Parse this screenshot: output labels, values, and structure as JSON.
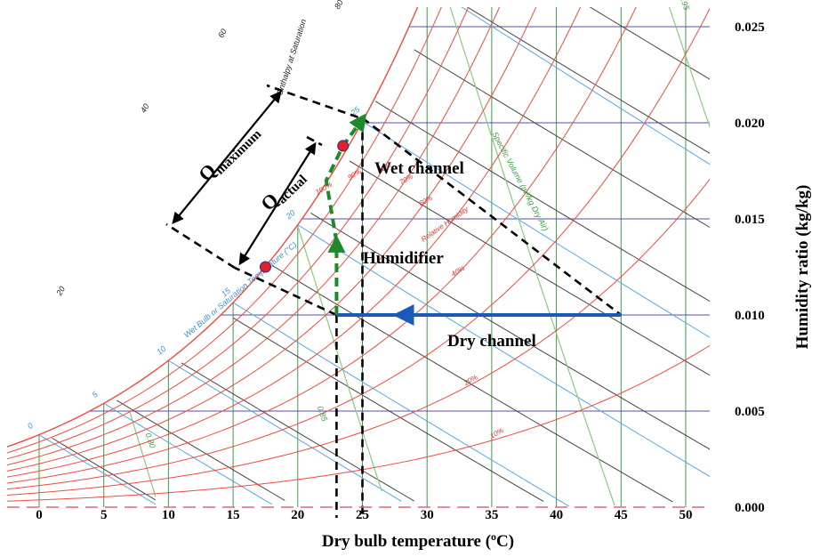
{
  "chart_data": {
    "type": "psychrometric",
    "xlabel": "Dry bulb temperature (oC)",
    "xlabel_main": "Dry bulb temperature (",
    "xlabel_sup": "o",
    "xlabel_unit": "C)",
    "ylabel": "Humidity ratio (kg/kg)",
    "xlim": [
      -2,
      52
    ],
    "ylim": [
      0,
      0.028
    ],
    "x_ticks": [
      "0",
      "5",
      "10",
      "15",
      "20",
      "25",
      "30",
      "35",
      "40",
      "45",
      "50"
    ],
    "x_tick_values": [
      0,
      5,
      10,
      15,
      20,
      25,
      30,
      35,
      40,
      45,
      50
    ],
    "y_ticks": [
      "0.000",
      "0.005",
      "0.010",
      "0.015",
      "0.020",
      "0.025"
    ],
    "y_tick_values": [
      0,
      0.005,
      0.01,
      0.015,
      0.02,
      0.025
    ],
    "rh_curves": [
      10,
      20,
      30,
      40,
      50,
      60,
      70,
      80,
      90,
      100
    ],
    "rh_labels": [
      "10%",
      "20%",
      "40%",
      "60%",
      "70%",
      "80%",
      "90%",
      "100%"
    ],
    "rh_label_values": [
      10,
      20,
      40,
      60,
      70,
      80,
      90,
      100
    ],
    "wet_bulb_labels": [
      "0",
      "5",
      "10",
      "15",
      "20",
      "25"
    ],
    "enthalpy_labels": [
      "20",
      "40",
      "60",
      "80"
    ],
    "specific_volume_labels": [
      "0.80",
      "0.85",
      "0.95"
    ],
    "curve_labels": {
      "saturation_temp": "Wet Bulb or Saturation Temperature (°C)",
      "enthalpy": "Enthalpy at Saturation",
      "specific_volume": "Specific Volume (m³/kg Dry Air)",
      "relative_humidity": "Relative Humidity"
    },
    "annotations": {
      "wet_channel": "Wet channel",
      "humidifier": "Humidifier",
      "dry_channel": "Dry channel",
      "q_maximum_main": "Q",
      "q_maximum_sub": "maximum",
      "q_actual_main": "Q",
      "q_actual_sub": "actual"
    },
    "processes": {
      "dry_channel": {
        "from": [
          45,
          0.01
        ],
        "to": [
          23,
          0.01
        ]
      },
      "humidifier": [
        [
          23,
          0.01
        ],
        [
          22.2,
          0.017
        ],
        [
          23.5,
          0.0188
        ],
        [
          25,
          0.0202
        ]
      ]
    },
    "points": [
      {
        "name": "actual-outlet",
        "x": 23.5,
        "y": 0.0188
      },
      {
        "name": "wet-bulb-inlet",
        "x": 17.5,
        "y": 0.0125
      }
    ],
    "colors": {
      "rh": "#f04a3e",
      "wet_bulb": "#56a6e4",
      "enthalpy": "#444444",
      "specific_volume": "#8acb7c",
      "humidity_grid": "#5a4ea8",
      "temp_grid": "#3c9a4a",
      "dry_channel": "#1a5ab8",
      "humidifier": "#1e8a2c",
      "point": "#e0202a"
    }
  }
}
